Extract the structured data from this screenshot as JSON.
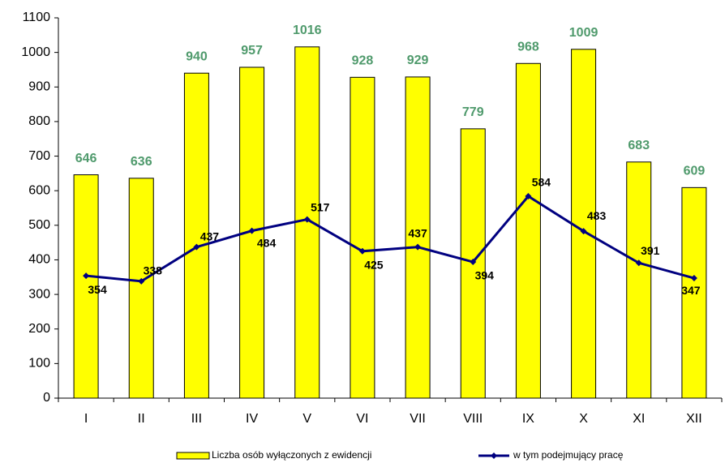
{
  "chart_data": {
    "type": "bar",
    "categories": [
      "I",
      "II",
      "III",
      "IV",
      "V",
      "VI",
      "VII",
      "VIII",
      "IX",
      "X",
      "XI",
      "XII"
    ],
    "series": [
      {
        "name": "Liczba osób wyłączonych z ewidencji",
        "type": "bar",
        "color": "#ffff00",
        "values": [
          646,
          636,
          940,
          957,
          1016,
          928,
          929,
          779,
          968,
          1009,
          683,
          609
        ]
      },
      {
        "name": "w tym podejmujący pracę",
        "type": "line",
        "color": "#000080",
        "values": [
          354,
          338,
          437,
          484,
          517,
          425,
          437,
          394,
          584,
          483,
          391,
          347
        ]
      }
    ],
    "ylim": [
      0,
      1100
    ],
    "yticks": [
      0,
      100,
      200,
      300,
      400,
      500,
      600,
      700,
      800,
      900,
      1000,
      1100
    ],
    "grid": false
  }
}
